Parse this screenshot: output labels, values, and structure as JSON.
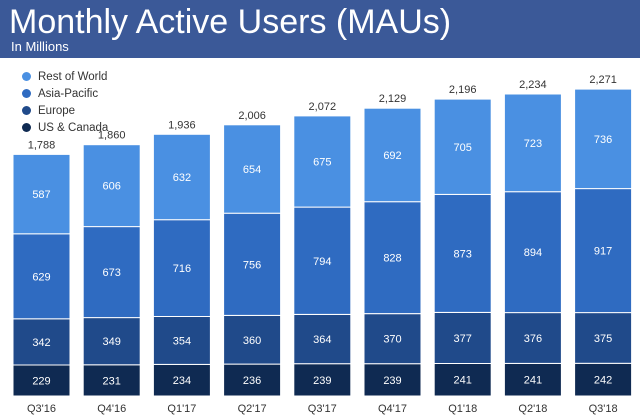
{
  "header": {
    "title": "Monthly Active Users (MAUs)",
    "subtitle": "In Millions"
  },
  "colors": {
    "header_bg": "#3b5998",
    "rest_of_world": "#4a90e2",
    "asia_pacific": "#2f6bc1",
    "europe": "#204a8a",
    "us_canada": "#0f2a52"
  },
  "chart_data": {
    "type": "bar",
    "stacked": true,
    "title": "Monthly Active Users (MAUs)",
    "subtitle": "In Millions",
    "categories": [
      "Q3'16",
      "Q4'16",
      "Q1'17",
      "Q2'17",
      "Q3'17",
      "Q4'17",
      "Q1'18",
      "Q2'18",
      "Q3'18"
    ],
    "totals": [
      1788,
      1860,
      1936,
      2006,
      2072,
      2129,
      2196,
      2234,
      2271
    ],
    "total_labels": [
      "1,788",
      "1,860",
      "1,936",
      "2,006",
      "2,072",
      "2,129",
      "2,196",
      "2,234",
      "2,271"
    ],
    "series": [
      {
        "name": "US & Canada",
        "color": "#0f2a52",
        "values": [
          229,
          231,
          234,
          236,
          239,
          239,
          241,
          241,
          242
        ]
      },
      {
        "name": "Europe",
        "color": "#204a8a",
        "values": [
          342,
          349,
          354,
          360,
          364,
          370,
          377,
          376,
          375
        ]
      },
      {
        "name": "Asia-Pacific",
        "color": "#2f6bc1",
        "values": [
          629,
          673,
          716,
          756,
          794,
          828,
          873,
          894,
          917
        ]
      },
      {
        "name": "Rest of World",
        "color": "#4a90e2",
        "values": [
          587,
          606,
          632,
          654,
          675,
          692,
          705,
          723,
          736
        ]
      }
    ],
    "legend": {
      "position": "top-left",
      "order": [
        "Rest of World",
        "Asia-Pacific",
        "Europe",
        "US & Canada"
      ]
    },
    "grid": false,
    "ylim": [
      0,
      2271
    ]
  }
}
